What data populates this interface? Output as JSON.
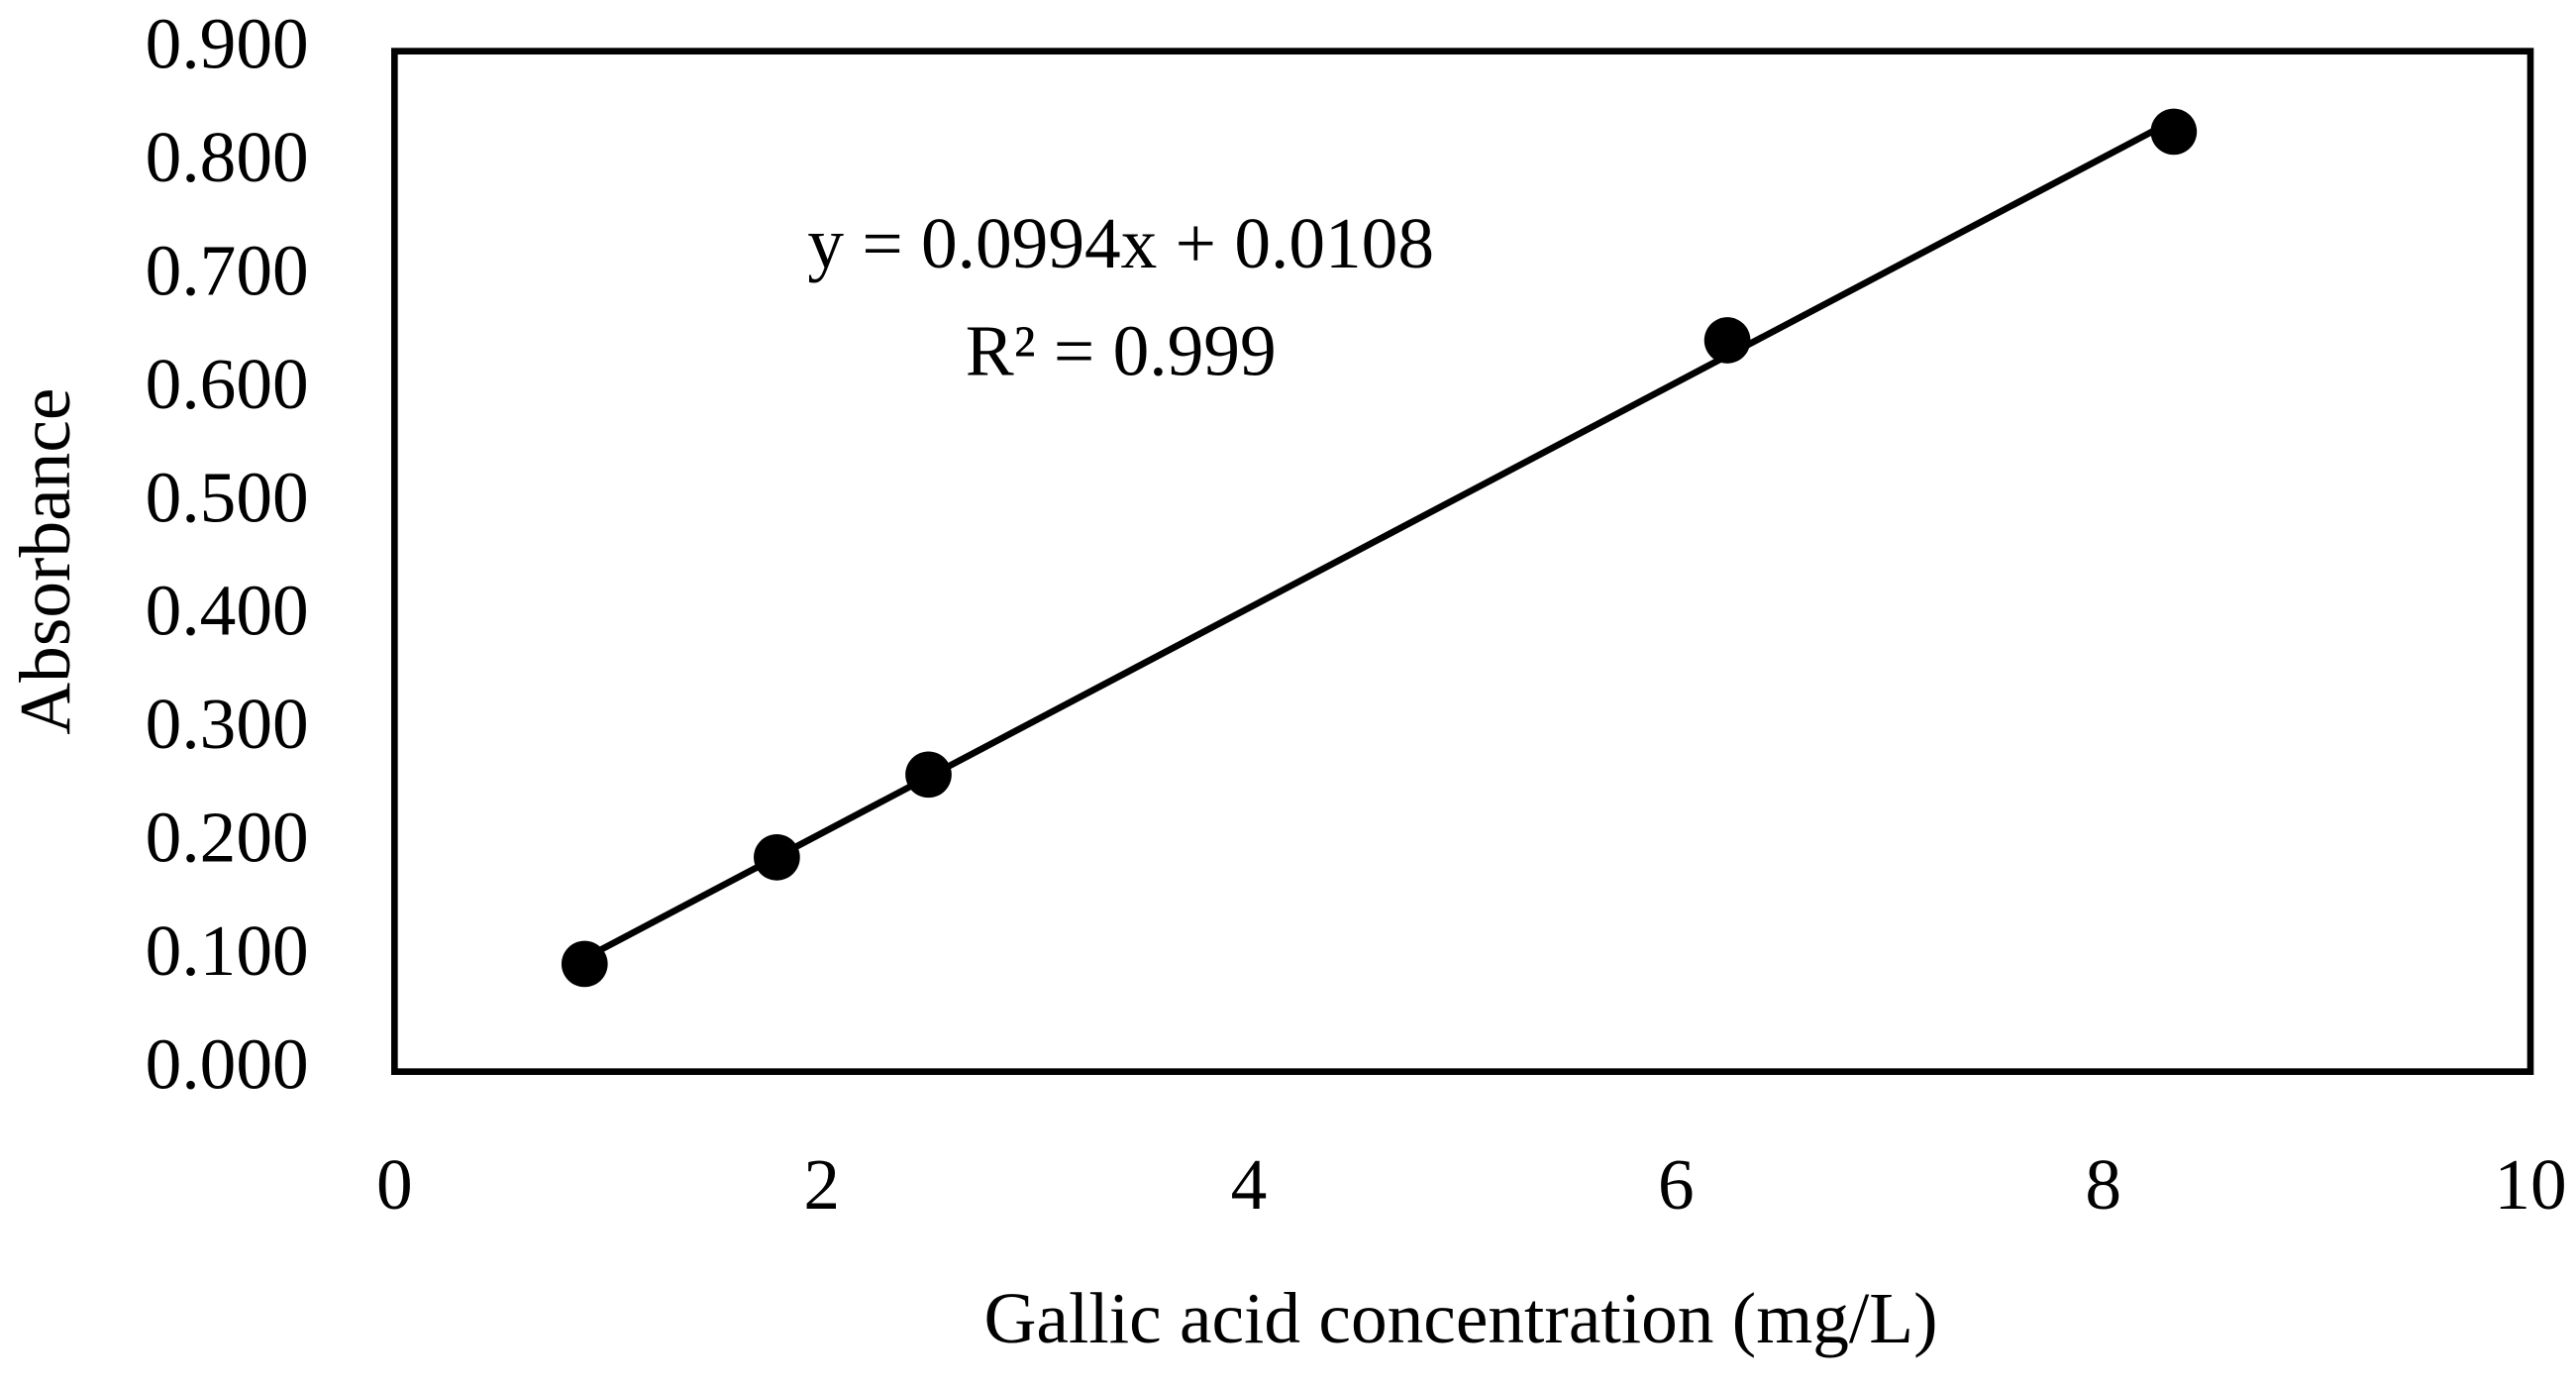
{
  "chart_data": {
    "type": "scatter",
    "x_label": "Gallic acid concentration (mg/L)",
    "y_label": "Absorbance",
    "annotations": [
      "y = 0.0994x + 0.0108",
      "R² = 0.999"
    ],
    "series": [
      {
        "color": "#000000",
        "x": [
          0.89,
          1.79,
          2.5,
          6.24,
          8.33
        ],
        "values": [
          0.095,
          0.189,
          0.262,
          0.645,
          0.829
        ]
      }
    ],
    "trendline": true,
    "xlim": [
      0,
      10
    ],
    "xticks": [
      0,
      2,
      4,
      6,
      8,
      10
    ],
    "ylim": [
      0,
      0.9
    ],
    "yticks": [
      {
        "value": 0,
        "label": "0.000"
      },
      {
        "value": 0.1,
        "label": "0.100"
      },
      {
        "value": 0.2,
        "label": "0.200"
      },
      {
        "value": 0.3,
        "label": "0.300"
      },
      {
        "value": 0.4,
        "label": "0.400"
      },
      {
        "value": 0.5,
        "label": "0.500"
      },
      {
        "value": 0.6,
        "label": "0.600"
      },
      {
        "value": 0.7,
        "label": "0.700"
      },
      {
        "value": 0.8,
        "label": "0.800"
      },
      {
        "value": 0.9,
        "label": "0.900"
      }
    ],
    "grid": false
  }
}
